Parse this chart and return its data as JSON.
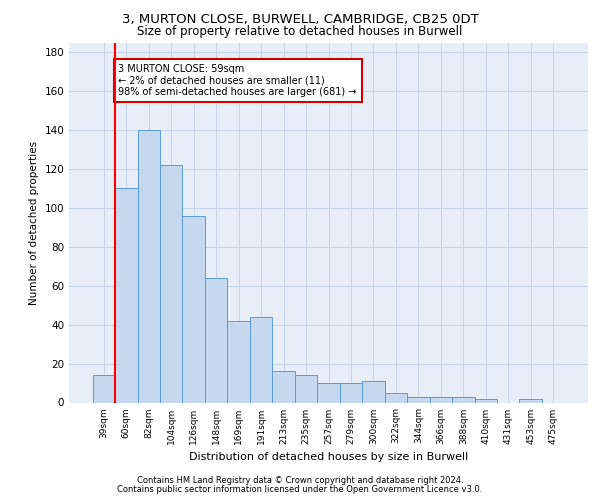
{
  "title1": "3, MURTON CLOSE, BURWELL, CAMBRIDGE, CB25 0DT",
  "title2": "Size of property relative to detached houses in Burwell",
  "xlabel": "Distribution of detached houses by size in Burwell",
  "ylabel": "Number of detached properties",
  "categories": [
    "39sqm",
    "60sqm",
    "82sqm",
    "104sqm",
    "126sqm",
    "148sqm",
    "169sqm",
    "191sqm",
    "213sqm",
    "235sqm",
    "257sqm",
    "279sqm",
    "300sqm",
    "322sqm",
    "344sqm",
    "366sqm",
    "388sqm",
    "410sqm",
    "431sqm",
    "453sqm",
    "475sqm"
  ],
  "values": [
    14,
    110,
    140,
    122,
    96,
    64,
    42,
    44,
    16,
    14,
    10,
    10,
    11,
    5,
    3,
    3,
    3,
    2,
    0,
    2,
    0
  ],
  "bar_color": "#c5d8f0",
  "bar_edge_color": "#5b9bd5",
  "highlight_bar_index": 1,
  "highlight_color": "#ff0000",
  "annotation_text": "3 MURTON CLOSE: 59sqm\n← 2% of detached houses are smaller (11)\n98% of semi-detached houses are larger (681) →",
  "annotation_box_color": "#ffffff",
  "annotation_box_edge_color": "#cc0000",
  "ylim": [
    0,
    185
  ],
  "yticks": [
    0,
    20,
    40,
    60,
    80,
    100,
    120,
    140,
    160,
    180
  ],
  "grid_color": "#c8d4e8",
  "background_color": "#e8eef8",
  "footer1": "Contains HM Land Registry data © Crown copyright and database right 2024.",
  "footer2": "Contains public sector information licensed under the Open Government Licence v3.0."
}
